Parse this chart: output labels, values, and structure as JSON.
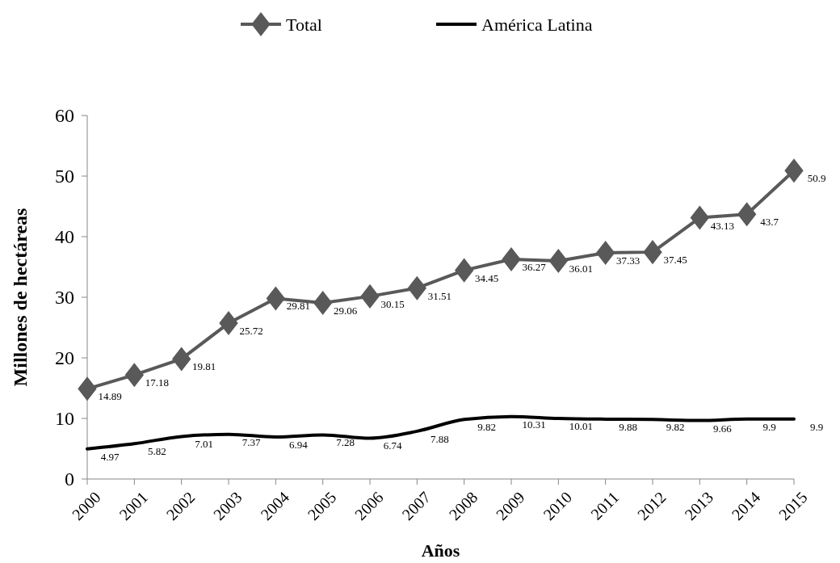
{
  "chart_data": {
    "type": "line",
    "xlabel": "Años",
    "ylabel": "Millones de hectáreas",
    "categories": [
      "2000",
      "2001",
      "2002",
      "2003",
      "2004",
      "2005",
      "2006",
      "2007",
      "2008",
      "2009",
      "2010",
      "2011",
      "2012",
      "2013",
      "2014",
      "2015"
    ],
    "series": [
      {
        "name": "Total",
        "color": "#595959",
        "marker": "diamond",
        "values": [
          14.89,
          17.18,
          19.81,
          25.72,
          29.81,
          29.06,
          30.15,
          31.51,
          34.45,
          36.27,
          36.01,
          37.33,
          37.45,
          43.13,
          43.7,
          50.9
        ]
      },
      {
        "name": "América Latina",
        "color": "#000000",
        "marker": "none",
        "values": [
          4.97,
          5.82,
          7.01,
          7.37,
          6.94,
          7.28,
          6.74,
          7.88,
          9.82,
          10.31,
          10.01,
          9.88,
          9.82,
          9.66,
          9.9,
          9.9
        ]
      }
    ],
    "ylim": [
      0,
      60
    ],
    "yticks": [
      0,
      10,
      20,
      30,
      40,
      50,
      60
    ],
    "grid": false,
    "legend": "top",
    "data_labels": true
  }
}
